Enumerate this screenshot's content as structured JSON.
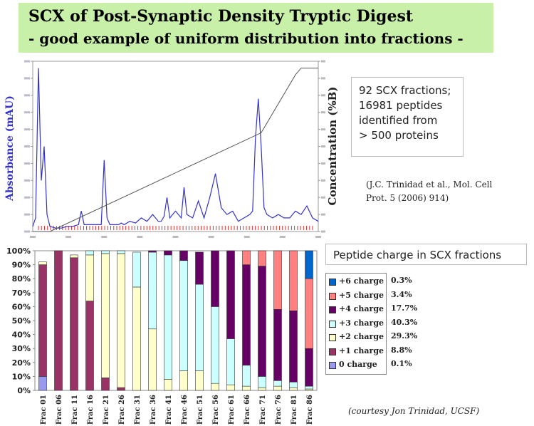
{
  "title": {
    "line1": "SCX of Post-Synaptic Density Tryptic Digest",
    "line2": "- good example of uniform distribution into fractions -"
  },
  "info_box": {
    "lines": [
      "92 SCX fractions;",
      "16981 peptides",
      "identified from",
      " > 500 proteins"
    ]
  },
  "citation": {
    "line1": "(J.C. Trinidad et al., Mol. Cell",
    "line2": "Prot. 5 (2006) 914)"
  },
  "legend_title": "Peptide charge in SCX fractions",
  "courtesy": "(courtesy Jon Trinidad, UCSF)",
  "colors": {
    "chromatogram": "#3333cc",
    "gradient": "#555555",
    "fraction_ticks": "#dd3333",
    "title_bg": "#c8f0a8"
  },
  "chart_data": [
    {
      "type": "line",
      "ylabel": "Absorbance (mAU)",
      "y2label": "Concentration (%B)",
      "note": "SCX chromatogram with salt gradient; tick labels are illegible in the image",
      "series": [
        {
          "role": "absorbance",
          "x": [
            0,
            1,
            2,
            3,
            4,
            5,
            6,
            8,
            10,
            12,
            14,
            16,
            17,
            18,
            19,
            20,
            22,
            24,
            25,
            26,
            27,
            28,
            30,
            31,
            32,
            34,
            36,
            38,
            40,
            42,
            44,
            45,
            46,
            47,
            48,
            50,
            52,
            53,
            54,
            56,
            58,
            60,
            62,
            64,
            66,
            68,
            70,
            72,
            74,
            76,
            77,
            78,
            79,
            80,
            81,
            82,
            84,
            86,
            88,
            90,
            92,
            94,
            96,
            98,
            100
          ],
          "y": [
            3,
            8,
            96,
            30,
            50,
            10,
            3,
            2,
            2,
            3,
            3,
            4,
            12,
            4,
            4,
            4,
            4,
            4,
            42,
            8,
            4,
            4,
            4,
            5,
            4,
            6,
            5,
            8,
            6,
            10,
            6,
            6,
            9,
            20,
            8,
            12,
            8,
            26,
            10,
            8,
            18,
            8,
            20,
            34,
            14,
            10,
            12,
            6,
            8,
            10,
            12,
            55,
            78,
            50,
            14,
            10,
            8,
            10,
            8,
            8,
            12,
            10,
            15,
            8,
            6
          ]
        },
        {
          "role": "gradient",
          "x": [
            0,
            3,
            6,
            80,
            92,
            94,
            98,
            100
          ],
          "y": [
            0,
            0,
            0,
            58,
            92,
            96,
            96,
            96
          ]
        }
      ]
    },
    {
      "type": "bar",
      "stacked": true,
      "categories": [
        "Frac 01",
        "Frac 06",
        "Frac 11",
        "Frac 16",
        "Frac 21",
        "Frac 26",
        "Frac 31",
        "Frac 36",
        "Frac 41",
        "Frac 46",
        "Frac 51",
        "Frac 56",
        "Frac 61",
        "Frac 66",
        "Frac 71",
        "Frac 76",
        "Frac 81",
        "Frac 86"
      ],
      "yticks": [
        "0%",
        "10%",
        "20%",
        "30%",
        "40%",
        "50%",
        "60%",
        "70%",
        "80%",
        "90%",
        "100%"
      ],
      "series": [
        {
          "name": "0 charge",
          "percent": "0.1%",
          "color": "#9999ee",
          "values": [
            10,
            0,
            0,
            0,
            0,
            0,
            0,
            0,
            0,
            0,
            0,
            0,
            0,
            0,
            0,
            0,
            0,
            0
          ]
        },
        {
          "name": "+1 charge",
          "percent": "8.8%",
          "color": "#993366",
          "values": [
            80,
            100,
            95,
            64,
            9,
            2,
            0,
            0,
            0,
            0,
            0,
            0,
            0,
            0,
            0,
            0,
            0,
            0
          ]
        },
        {
          "name": "+2 charge",
          "percent": "29.3%",
          "color": "#ffffcc",
          "values": [
            2,
            0,
            2,
            33,
            89,
            96,
            74,
            44,
            8,
            14,
            14,
            5,
            4,
            3,
            2,
            3,
            2,
            1
          ]
        },
        {
          "name": "+3 charge",
          "percent": "40.3%",
          "color": "#ccffff",
          "values": [
            0,
            0,
            0,
            3,
            2,
            2,
            25,
            55,
            89,
            79,
            62,
            55,
            33,
            15,
            8,
            4,
            4,
            2
          ]
        },
        {
          "name": "+4 charge",
          "percent": "17.7%",
          "color": "#660066",
          "values": [
            0,
            0,
            0,
            0,
            0,
            0,
            0,
            1,
            3,
            7,
            23,
            40,
            63,
            72,
            79,
            51,
            51,
            27
          ]
        },
        {
          "name": "+5 charge",
          "percent": "3.4%",
          "color": "#ff8080",
          "values": [
            0,
            0,
            0,
            0,
            0,
            0,
            0,
            0,
            0,
            0,
            0,
            0,
            0,
            10,
            11,
            42,
            43,
            50
          ]
        },
        {
          "name": "+6 charge",
          "percent": "0.3%",
          "color": "#0066cc",
          "values": [
            0,
            0,
            0,
            0,
            0,
            0,
            0,
            0,
            0,
            0,
            0,
            0,
            0,
            0,
            0,
            0,
            0,
            20
          ]
        }
      ]
    }
  ]
}
